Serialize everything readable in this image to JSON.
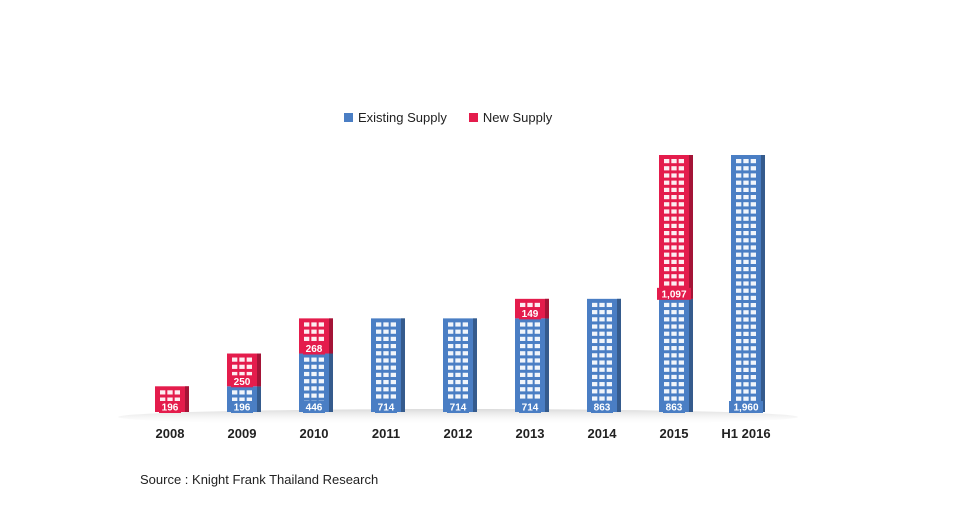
{
  "legend": {
    "existing_label": "Existing Supply",
    "new_label": "New Supply"
  },
  "source": "Source : Knight Frank Thailand Research",
  "colors": {
    "existing": "#4a7ec4",
    "new": "#e41c4c"
  },
  "chart_data": {
    "type": "bar",
    "stacked": true,
    "categories": [
      "2008",
      "2009",
      "2010",
      "2011",
      "2012",
      "2013",
      "2014",
      "2015",
      "H1 2016"
    ],
    "series": [
      {
        "name": "Existing Supply",
        "values": [
          0,
          196,
          446,
          714,
          714,
          714,
          863,
          863,
          1960
        ]
      },
      {
        "name": "New Supply",
        "values": [
          196,
          250,
          268,
          0,
          0,
          149,
          0,
          1097,
          0
        ]
      }
    ],
    "data_labels": {
      "existing": [
        "",
        "196",
        "446",
        "714",
        "714",
        "714",
        "863",
        "863",
        "1,960"
      ],
      "new": [
        "196",
        "250",
        "268",
        "",
        "",
        "149",
        "",
        "1,097",
        ""
      ]
    },
    "ylim": [
      0,
      1960
    ],
    "grid": false,
    "legend_position": "top"
  }
}
